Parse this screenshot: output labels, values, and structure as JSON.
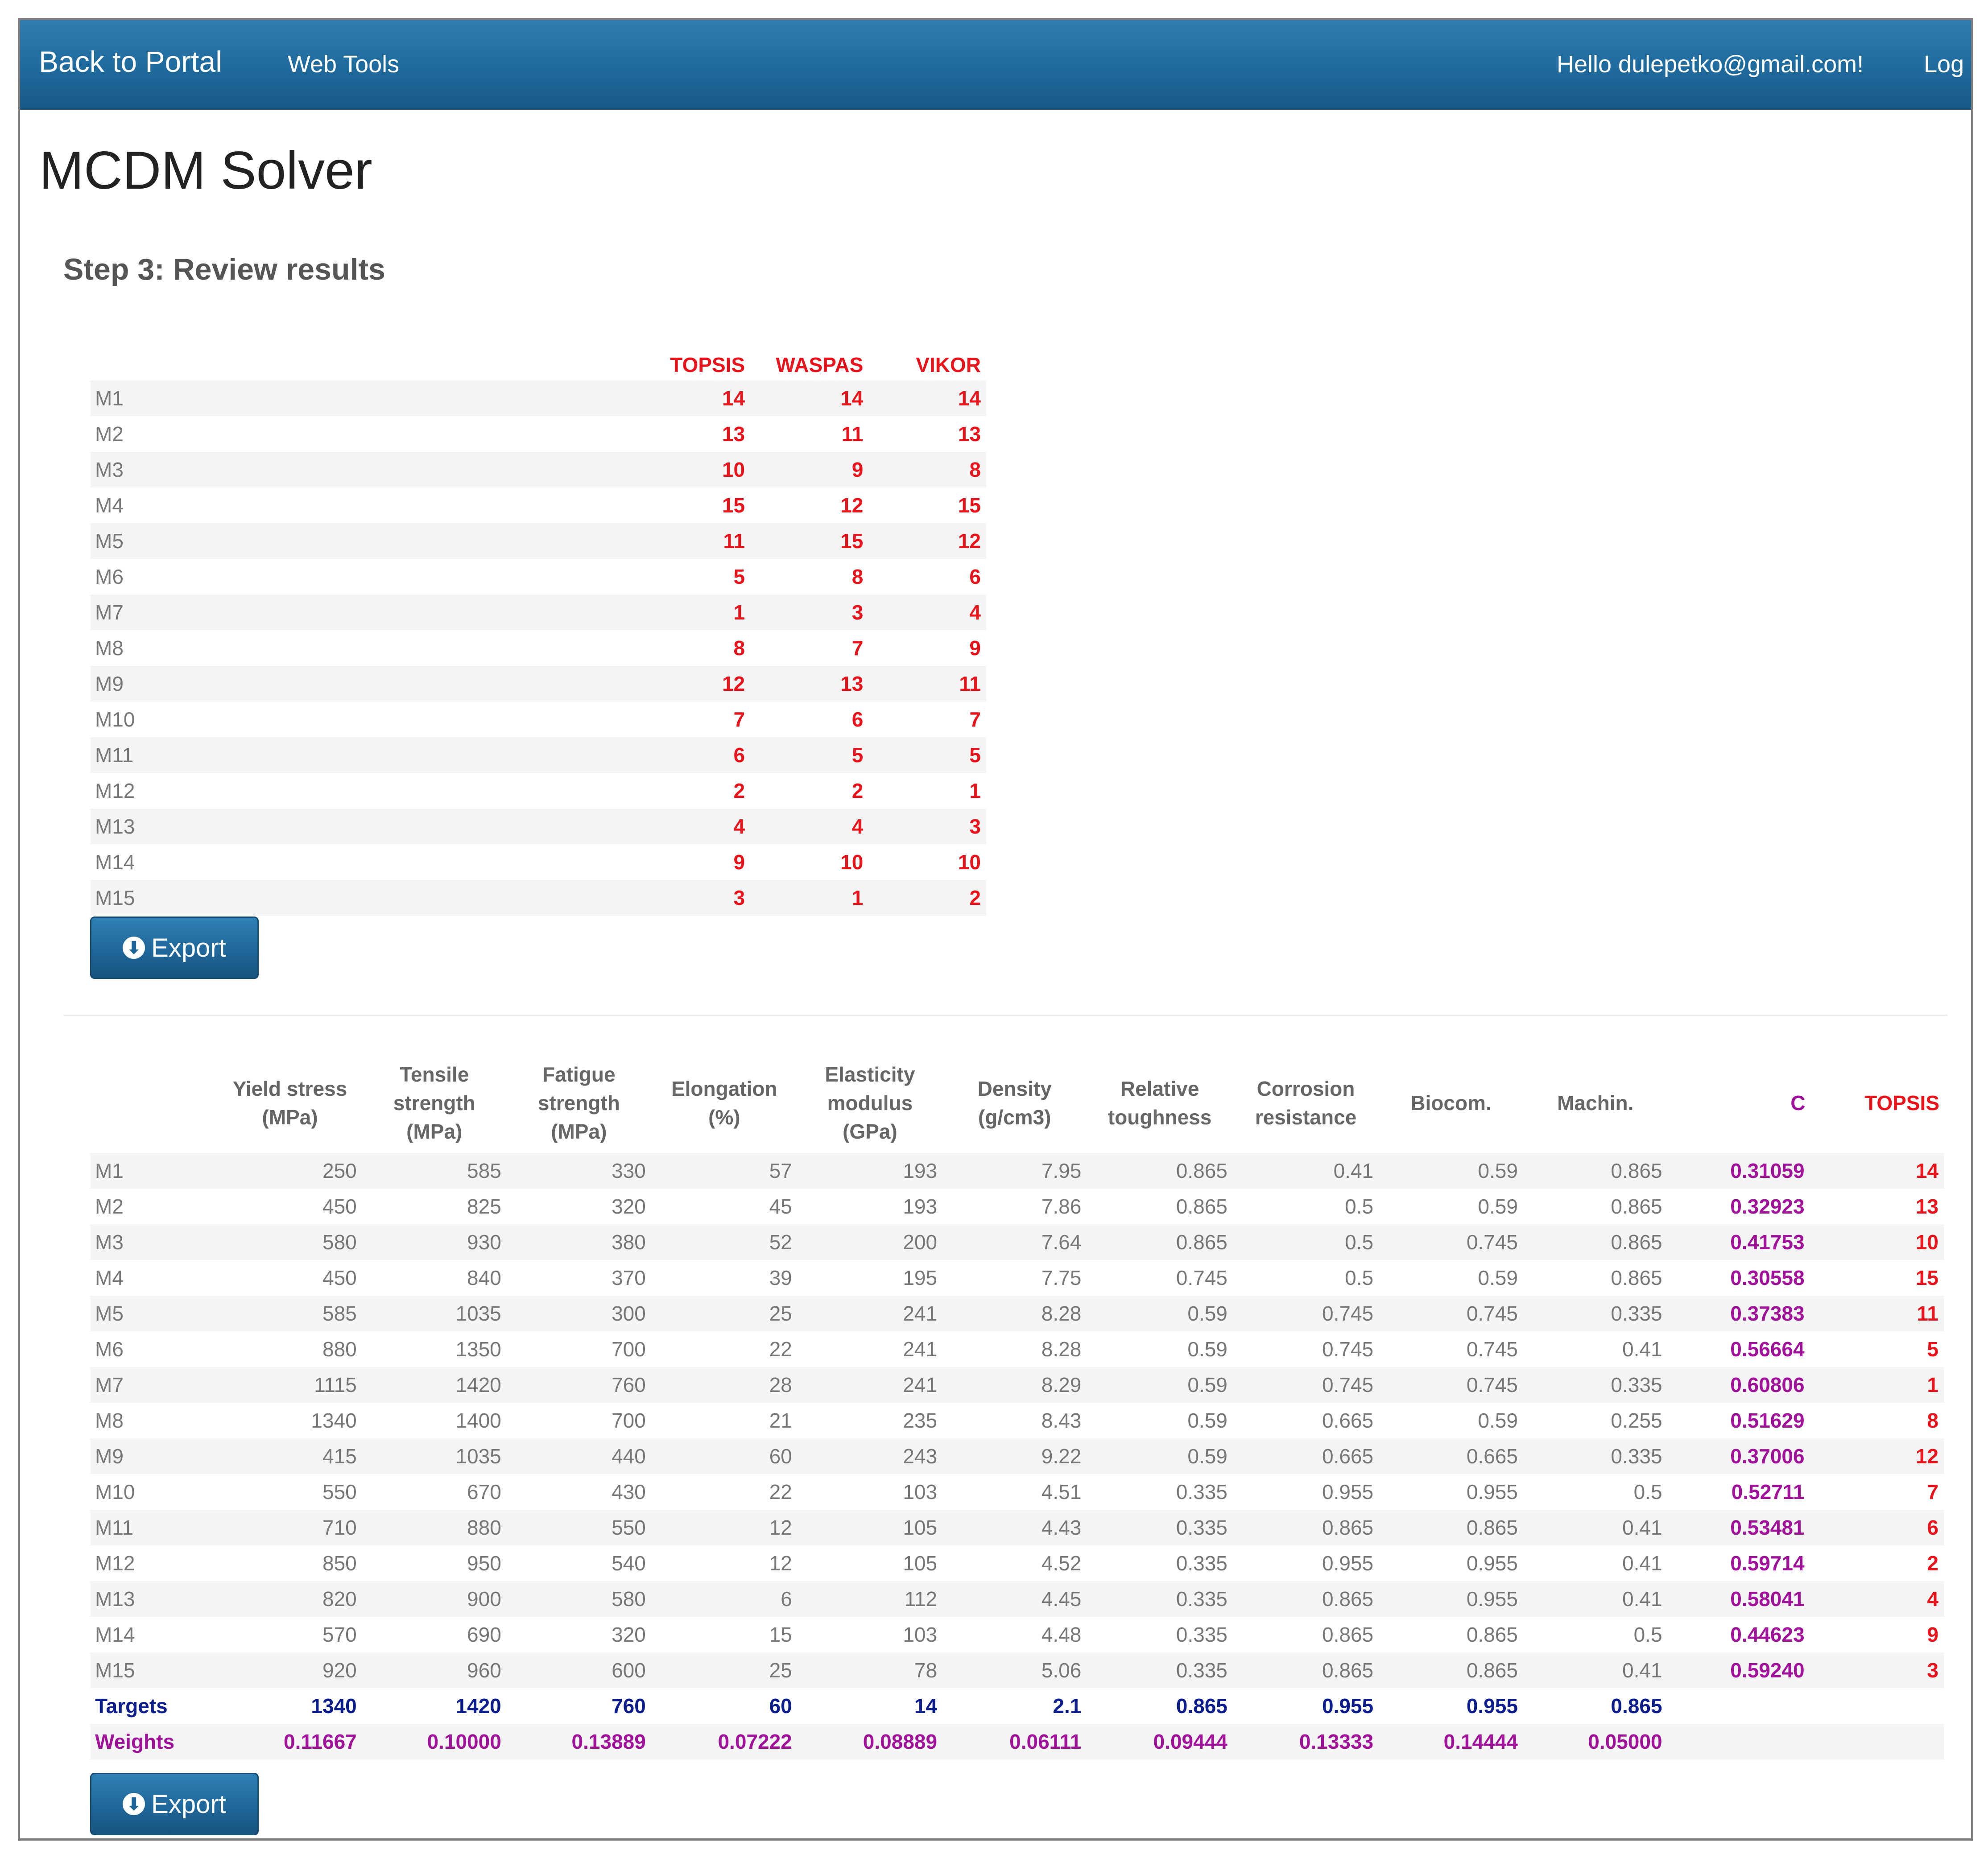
{
  "nav": {
    "brand": "Back to Portal",
    "web_tools": "Web Tools",
    "greeting": "Hello dulepetko@gmail.com!",
    "logoff": "Log"
  },
  "page": {
    "title": "MCDM Solver",
    "step": "Step 3: Review results"
  },
  "ranks": {
    "headers": [
      "TOPSIS",
      "WASPAS",
      "VIKOR"
    ],
    "rows": [
      {
        "m": "M1",
        "topsis": "14",
        "waspas": "14",
        "vikor": "14"
      },
      {
        "m": "M2",
        "topsis": "13",
        "waspas": "11",
        "vikor": "13"
      },
      {
        "m": "M3",
        "topsis": "10",
        "waspas": "9",
        "vikor": "8"
      },
      {
        "m": "M4",
        "topsis": "15",
        "waspas": "12",
        "vikor": "15"
      },
      {
        "m": "M5",
        "topsis": "11",
        "waspas": "15",
        "vikor": "12"
      },
      {
        "m": "M6",
        "topsis": "5",
        "waspas": "8",
        "vikor": "6"
      },
      {
        "m": "M7",
        "topsis": "1",
        "waspas": "3",
        "vikor": "4"
      },
      {
        "m": "M8",
        "topsis": "8",
        "waspas": "7",
        "vikor": "9"
      },
      {
        "m": "M9",
        "topsis": "12",
        "waspas": "13",
        "vikor": "11"
      },
      {
        "m": "M10",
        "topsis": "7",
        "waspas": "6",
        "vikor": "7"
      },
      {
        "m": "M11",
        "topsis": "6",
        "waspas": "5",
        "vikor": "5"
      },
      {
        "m": "M12",
        "topsis": "2",
        "waspas": "2",
        "vikor": "1"
      },
      {
        "m": "M13",
        "topsis": "4",
        "waspas": "4",
        "vikor": "3"
      },
      {
        "m": "M14",
        "topsis": "9",
        "waspas": "10",
        "vikor": "10"
      },
      {
        "m": "M15",
        "topsis": "3",
        "waspas": "1",
        "vikor": "2"
      }
    ]
  },
  "export_label": "Export",
  "export_icon": "download-circle-icon",
  "data": {
    "headers": {
      "yield": [
        "Yield stress",
        "(MPa)"
      ],
      "tensile": [
        "Tensile",
        "strength",
        "(MPa)"
      ],
      "fatigue": [
        "Fatigue",
        "strength",
        "(MPa)"
      ],
      "elong": [
        "Elongation",
        "(%)"
      ],
      "elastic": [
        "Elasticity",
        "modulus",
        "(GPa)"
      ],
      "density": [
        "Density",
        "(g/cm3)"
      ],
      "tough": [
        "Relative",
        "toughness"
      ],
      "corr": [
        "Corrosion",
        "resistance"
      ],
      "biocom": [
        "Biocom."
      ],
      "machin": [
        "Machin."
      ],
      "c": [
        "C"
      ],
      "topsis": [
        "TOPSIS"
      ]
    },
    "rows": [
      {
        "m": "M1",
        "v": [
          "250",
          "585",
          "330",
          "57",
          "193",
          "7.95",
          "0.865",
          "0.41",
          "0.59",
          "0.865"
        ],
        "c": "0.31059",
        "t": "14"
      },
      {
        "m": "M2",
        "v": [
          "450",
          "825",
          "320",
          "45",
          "193",
          "7.86",
          "0.865",
          "0.5",
          "0.59",
          "0.865"
        ],
        "c": "0.32923",
        "t": "13"
      },
      {
        "m": "M3",
        "v": [
          "580",
          "930",
          "380",
          "52",
          "200",
          "7.64",
          "0.865",
          "0.5",
          "0.745",
          "0.865"
        ],
        "c": "0.41753",
        "t": "10"
      },
      {
        "m": "M4",
        "v": [
          "450",
          "840",
          "370",
          "39",
          "195",
          "7.75",
          "0.745",
          "0.5",
          "0.59",
          "0.865"
        ],
        "c": "0.30558",
        "t": "15"
      },
      {
        "m": "M5",
        "v": [
          "585",
          "1035",
          "300",
          "25",
          "241",
          "8.28",
          "0.59",
          "0.745",
          "0.745",
          "0.335"
        ],
        "c": "0.37383",
        "t": "11"
      },
      {
        "m": "M6",
        "v": [
          "880",
          "1350",
          "700",
          "22",
          "241",
          "8.28",
          "0.59",
          "0.745",
          "0.745",
          "0.41"
        ],
        "c": "0.56664",
        "t": "5"
      },
      {
        "m": "M7",
        "v": [
          "1115",
          "1420",
          "760",
          "28",
          "241",
          "8.29",
          "0.59",
          "0.745",
          "0.745",
          "0.335"
        ],
        "c": "0.60806",
        "t": "1"
      },
      {
        "m": "M8",
        "v": [
          "1340",
          "1400",
          "700",
          "21",
          "235",
          "8.43",
          "0.59",
          "0.665",
          "0.59",
          "0.255"
        ],
        "c": "0.51629",
        "t": "8"
      },
      {
        "m": "M9",
        "v": [
          "415",
          "1035",
          "440",
          "60",
          "243",
          "9.22",
          "0.59",
          "0.665",
          "0.665",
          "0.335"
        ],
        "c": "0.37006",
        "t": "12"
      },
      {
        "m": "M10",
        "v": [
          "550",
          "670",
          "430",
          "22",
          "103",
          "4.51",
          "0.335",
          "0.955",
          "0.955",
          "0.5"
        ],
        "c": "0.52711",
        "t": "7"
      },
      {
        "m": "M11",
        "v": [
          "710",
          "880",
          "550",
          "12",
          "105",
          "4.43",
          "0.335",
          "0.865",
          "0.865",
          "0.41"
        ],
        "c": "0.53481",
        "t": "6"
      },
      {
        "m": "M12",
        "v": [
          "850",
          "950",
          "540",
          "12",
          "105",
          "4.52",
          "0.335",
          "0.955",
          "0.955",
          "0.41"
        ],
        "c": "0.59714",
        "t": "2"
      },
      {
        "m": "M13",
        "v": [
          "820",
          "900",
          "580",
          "6",
          "112",
          "4.45",
          "0.335",
          "0.865",
          "0.955",
          "0.41"
        ],
        "c": "0.58041",
        "t": "4"
      },
      {
        "m": "M14",
        "v": [
          "570",
          "690",
          "320",
          "15",
          "103",
          "4.48",
          "0.335",
          "0.865",
          "0.865",
          "0.5"
        ],
        "c": "0.44623",
        "t": "9"
      },
      {
        "m": "M15",
        "v": [
          "920",
          "960",
          "600",
          "25",
          "78",
          "5.06",
          "0.335",
          "0.865",
          "0.865",
          "0.41"
        ],
        "c": "0.59240",
        "t": "3"
      }
    ],
    "targets": {
      "label": "Targets",
      "v": [
        "1340",
        "1420",
        "760",
        "60",
        "14",
        "2.1",
        "0.865",
        "0.955",
        "0.955",
        "0.865"
      ]
    },
    "weights": {
      "label": "Weights",
      "v": [
        "0.11667",
        "0.10000",
        "0.13889",
        "0.07222",
        "0.08889",
        "0.06111",
        "0.09444",
        "0.13333",
        "0.14444",
        "0.05000"
      ]
    }
  },
  "colors": {
    "navbar": "#1f6a9c",
    "rank_red": "#e8141b",
    "c_purple": "#a0129a",
    "target_blue": "#0b1e8c"
  }
}
